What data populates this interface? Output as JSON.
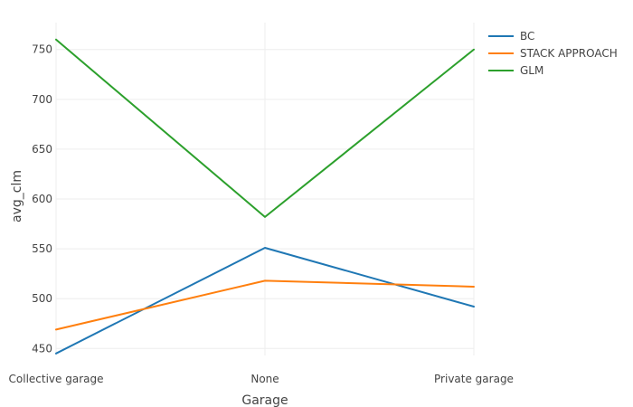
{
  "chart_data": {
    "type": "line",
    "xlabel": "Garage",
    "ylabel": "avg_clm",
    "categories": [
      "Collective garage",
      "None",
      "Private garage"
    ],
    "yticks": [
      450,
      500,
      550,
      600,
      650,
      700,
      750
    ],
    "ylim": [
      443,
      777
    ],
    "grid": true,
    "legend_position": "top-right",
    "series": [
      {
        "name": "BC",
        "color": "#1f77b4",
        "values": [
          445,
          551,
          492
        ]
      },
      {
        "name": "STACK APPROACH",
        "color": "#ff7f0e",
        "values": [
          469,
          518,
          512
        ]
      },
      {
        "name": "GLM",
        "color": "#2ca02c",
        "values": [
          760,
          582,
          750
        ]
      }
    ]
  }
}
